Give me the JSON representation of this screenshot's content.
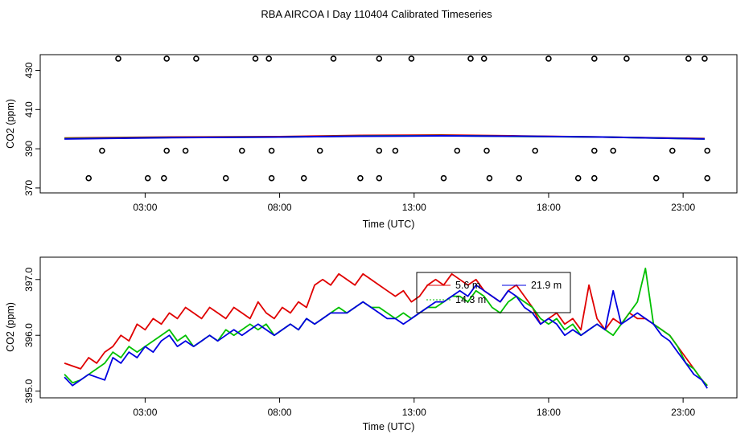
{
  "title": "RBA AIRCOA I  Day 110404  Calibrated Timeseries",
  "colors": {
    "5.6 m": "#e00000",
    "14.3 m": "#00c000",
    "21.9 m": "#0000e0"
  },
  "chart_data": [
    {
      "type": "line",
      "panel": "top",
      "xlabel": "Time (UTC)",
      "ylabel": "CO2 (ppm)",
      "x_unit": "hours UTC",
      "xlim": [
        -0.9,
        25.0
      ],
      "ylim": [
        367.5,
        438
      ],
      "x_ticks": [
        3,
        8,
        13,
        18,
        23
      ],
      "x_tick_labels": [
        "03:00",
        "08:00",
        "13:00",
        "18:00",
        "23:00"
      ],
      "y_ticks": [
        370,
        390,
        410,
        430
      ],
      "y_tick_labels": [
        "370",
        "390",
        "410",
        "430"
      ],
      "grid": false,
      "series": [
        {
          "name": "5.6 m",
          "color": "#e00000",
          "x": [
            0.0,
            4.0,
            8.0,
            11.0,
            14.0,
            17.0,
            20.0,
            23.8
          ],
          "y": [
            395.5,
            396.0,
            396.2,
            396.8,
            397.0,
            396.5,
            396.0,
            395.2
          ]
        },
        {
          "name": "14.3 m",
          "color": "#00c000",
          "x": [
            0.0,
            4.0,
            8.0,
            11.0,
            14.0,
            17.0,
            20.0,
            23.8
          ],
          "y": [
            395.2,
            395.8,
            396.0,
            396.5,
            396.7,
            396.3,
            396.0,
            395.0
          ]
        },
        {
          "name": "21.9 m",
          "color": "#0000e0",
          "x": [
            0.0,
            4.0,
            8.0,
            11.0,
            14.0,
            17.0,
            20.0,
            23.8
          ],
          "y": [
            395.0,
            395.7,
            396.0,
            396.4,
            396.6,
            396.4,
            396.0,
            395.0
          ]
        }
      ],
      "points": [
        {
          "x": 2.0,
          "y": 436
        },
        {
          "x": 3.8,
          "y": 436
        },
        {
          "x": 4.9,
          "y": 436
        },
        {
          "x": 7.1,
          "y": 436
        },
        {
          "x": 7.6,
          "y": 436
        },
        {
          "x": 10.0,
          "y": 436
        },
        {
          "x": 11.7,
          "y": 436
        },
        {
          "x": 12.9,
          "y": 436
        },
        {
          "x": 15.1,
          "y": 436
        },
        {
          "x": 15.6,
          "y": 436
        },
        {
          "x": 18.0,
          "y": 436
        },
        {
          "x": 19.7,
          "y": 436
        },
        {
          "x": 20.9,
          "y": 436
        },
        {
          "x": 23.2,
          "y": 436
        },
        {
          "x": 23.8,
          "y": 436
        },
        {
          "x": 1.4,
          "y": 389
        },
        {
          "x": 3.8,
          "y": 389
        },
        {
          "x": 4.5,
          "y": 389
        },
        {
          "x": 6.6,
          "y": 389
        },
        {
          "x": 7.7,
          "y": 389
        },
        {
          "x": 9.5,
          "y": 389
        },
        {
          "x": 11.7,
          "y": 389
        },
        {
          "x": 12.3,
          "y": 389
        },
        {
          "x": 14.6,
          "y": 389
        },
        {
          "x": 15.7,
          "y": 389
        },
        {
          "x": 17.5,
          "y": 389
        },
        {
          "x": 19.7,
          "y": 389
        },
        {
          "x": 20.4,
          "y": 389
        },
        {
          "x": 22.6,
          "y": 389
        },
        {
          "x": 23.9,
          "y": 389
        },
        {
          "x": 0.9,
          "y": 375
        },
        {
          "x": 3.1,
          "y": 375
        },
        {
          "x": 3.7,
          "y": 375
        },
        {
          "x": 6.0,
          "y": 375
        },
        {
          "x": 7.7,
          "y": 375
        },
        {
          "x": 8.9,
          "y": 375
        },
        {
          "x": 11.0,
          "y": 375
        },
        {
          "x": 11.7,
          "y": 375
        },
        {
          "x": 14.1,
          "y": 375
        },
        {
          "x": 15.8,
          "y": 375
        },
        {
          "x": 16.9,
          "y": 375
        },
        {
          "x": 19.1,
          "y": 375
        },
        {
          "x": 19.7,
          "y": 375
        },
        {
          "x": 22.0,
          "y": 375
        },
        {
          "x": 23.9,
          "y": 375
        }
      ]
    },
    {
      "type": "line",
      "panel": "bottom",
      "xlabel": "Time (UTC)",
      "ylabel": "CO2 (ppm)",
      "x_unit": "hours UTC",
      "xlim": [
        -0.9,
        25.0
      ],
      "ylim": [
        394.88,
        397.4
      ],
      "x_ticks": [
        3,
        8,
        13,
        18,
        23
      ],
      "x_tick_labels": [
        "03:00",
        "08:00",
        "13:00",
        "18:00",
        "23:00"
      ],
      "y_ticks": [
        395.0,
        396.0,
        397.0
      ],
      "y_tick_labels": [
        "395.0",
        "396.0",
        "397.0"
      ],
      "grid": false,
      "legend_position": "top-center",
      "series": [
        {
          "name": "5.6 m",
          "color": "#e00000",
          "x": [
            0.0,
            0.3,
            0.6,
            0.9,
            1.2,
            1.5,
            1.8,
            2.1,
            2.4,
            2.7,
            3.0,
            3.3,
            3.6,
            3.9,
            4.2,
            4.5,
            4.8,
            5.1,
            5.4,
            5.7,
            6.0,
            6.3,
            6.6,
            6.9,
            7.2,
            7.5,
            7.8,
            8.1,
            8.4,
            8.7,
            9.0,
            9.3,
            9.6,
            9.9,
            10.2,
            10.5,
            10.8,
            11.1,
            11.4,
            11.7,
            12.0,
            12.3,
            12.6,
            12.9,
            13.2,
            13.5,
            13.8,
            14.1,
            14.4,
            14.7,
            15.0,
            15.3,
            15.6,
            15.9,
            16.2,
            16.5,
            16.8,
            17.1,
            17.4,
            17.7,
            18.0,
            18.3,
            18.6,
            18.9,
            19.2,
            19.5,
            19.8,
            20.1,
            20.4,
            20.7,
            21.0,
            21.3,
            21.6,
            21.9,
            22.2,
            22.5,
            22.8,
            23.1,
            23.4,
            23.7,
            23.9
          ],
          "y": [
            395.5,
            395.45,
            395.4,
            395.6,
            395.5,
            395.7,
            395.8,
            396.0,
            395.9,
            396.2,
            396.1,
            396.3,
            396.2,
            396.4,
            396.3,
            396.5,
            396.4,
            396.3,
            396.5,
            396.4,
            396.3,
            396.5,
            396.4,
            396.3,
            396.6,
            396.4,
            396.3,
            396.5,
            396.4,
            396.6,
            396.5,
            396.9,
            397.0,
            396.9,
            397.1,
            397.0,
            396.9,
            397.1,
            397.0,
            396.9,
            396.8,
            396.7,
            396.8,
            396.6,
            396.7,
            396.9,
            397.0,
            396.9,
            397.1,
            397.0,
            396.9,
            397.0,
            396.8,
            396.7,
            396.6,
            396.8,
            396.9,
            396.7,
            396.5,
            396.2,
            396.3,
            396.4,
            396.2,
            396.3,
            396.1,
            396.9,
            396.3,
            396.1,
            396.3,
            396.2,
            396.4,
            396.3,
            396.3,
            396.2,
            396.1,
            396.0,
            395.8,
            395.6,
            395.4,
            395.2,
            395.1
          ]
        },
        {
          "name": "14.3 m",
          "color": "#00c000",
          "x": [
            0.0,
            0.3,
            0.6,
            0.9,
            1.2,
            1.5,
            1.8,
            2.1,
            2.4,
            2.7,
            3.0,
            3.3,
            3.6,
            3.9,
            4.2,
            4.5,
            4.8,
            5.1,
            5.4,
            5.7,
            6.0,
            6.3,
            6.6,
            6.9,
            7.2,
            7.5,
            7.8,
            8.1,
            8.4,
            8.7,
            9.0,
            9.3,
            9.6,
            9.9,
            10.2,
            10.5,
            10.8,
            11.1,
            11.4,
            11.7,
            12.0,
            12.3,
            12.6,
            12.9,
            13.2,
            13.5,
            13.8,
            14.1,
            14.4,
            14.7,
            15.0,
            15.3,
            15.6,
            15.9,
            16.2,
            16.5,
            16.8,
            17.1,
            17.4,
            17.7,
            18.0,
            18.3,
            18.6,
            18.9,
            19.2,
            19.5,
            19.8,
            20.1,
            20.4,
            20.7,
            21.0,
            21.3,
            21.6,
            21.9,
            22.2,
            22.5,
            22.8,
            23.1,
            23.4,
            23.7,
            23.9
          ],
          "y": [
            395.3,
            395.15,
            395.2,
            395.3,
            395.4,
            395.5,
            395.7,
            395.6,
            395.8,
            395.7,
            395.8,
            395.9,
            396.0,
            396.1,
            395.9,
            396.0,
            395.8,
            395.9,
            396.0,
            395.9,
            396.1,
            396.0,
            396.1,
            396.2,
            396.1,
            396.2,
            396.0,
            396.1,
            396.2,
            396.1,
            396.3,
            396.2,
            396.3,
            396.4,
            396.5,
            396.4,
            396.5,
            396.6,
            396.5,
            396.5,
            396.4,
            396.3,
            396.4,
            396.3,
            396.4,
            396.5,
            396.5,
            396.6,
            396.7,
            396.7,
            396.6,
            396.8,
            396.7,
            396.5,
            396.4,
            396.6,
            396.7,
            396.6,
            396.5,
            396.3,
            396.2,
            396.3,
            396.1,
            396.2,
            396.0,
            396.1,
            396.2,
            396.1,
            396.0,
            396.2,
            396.4,
            396.6,
            397.2,
            396.2,
            396.1,
            396.0,
            395.8,
            395.5,
            395.4,
            395.2,
            395.1
          ]
        },
        {
          "name": "21.9 m",
          "color": "#0000e0",
          "x": [
            0.0,
            0.3,
            0.6,
            0.9,
            1.2,
            1.5,
            1.8,
            2.1,
            2.4,
            2.7,
            3.0,
            3.3,
            3.6,
            3.9,
            4.2,
            4.5,
            4.8,
            5.1,
            5.4,
            5.7,
            6.0,
            6.3,
            6.6,
            6.9,
            7.2,
            7.5,
            7.8,
            8.1,
            8.4,
            8.7,
            9.0,
            9.3,
            9.6,
            9.9,
            10.2,
            10.5,
            10.8,
            11.1,
            11.4,
            11.7,
            12.0,
            12.3,
            12.6,
            12.9,
            13.2,
            13.5,
            13.8,
            14.1,
            14.4,
            14.7,
            15.0,
            15.3,
            15.6,
            15.9,
            16.2,
            16.5,
            16.8,
            17.1,
            17.4,
            17.7,
            18.0,
            18.3,
            18.6,
            18.9,
            19.2,
            19.5,
            19.8,
            20.1,
            20.4,
            20.7,
            21.0,
            21.3,
            21.6,
            21.9,
            22.2,
            22.5,
            22.8,
            23.1,
            23.4,
            23.7,
            23.9
          ],
          "y": [
            395.25,
            395.1,
            395.2,
            395.3,
            395.25,
            395.2,
            395.6,
            395.5,
            395.7,
            395.6,
            395.8,
            395.7,
            395.9,
            396.0,
            395.8,
            395.9,
            395.8,
            395.9,
            396.0,
            395.9,
            396.0,
            396.1,
            396.0,
            396.1,
            396.2,
            396.1,
            396.0,
            396.1,
            396.2,
            396.1,
            396.3,
            396.2,
            396.3,
            396.4,
            396.4,
            396.4,
            396.5,
            396.6,
            396.5,
            396.4,
            396.3,
            396.3,
            396.2,
            396.3,
            396.4,
            396.5,
            396.6,
            396.6,
            396.7,
            396.8,
            396.7,
            396.9,
            396.8,
            396.7,
            396.6,
            396.8,
            396.7,
            396.5,
            396.4,
            396.2,
            396.3,
            396.2,
            396.0,
            396.1,
            396.0,
            396.1,
            396.2,
            396.1,
            396.8,
            396.2,
            396.3,
            396.4,
            396.3,
            396.2,
            396.0,
            395.9,
            395.7,
            395.5,
            395.3,
            395.2,
            395.05
          ]
        }
      ]
    }
  ]
}
